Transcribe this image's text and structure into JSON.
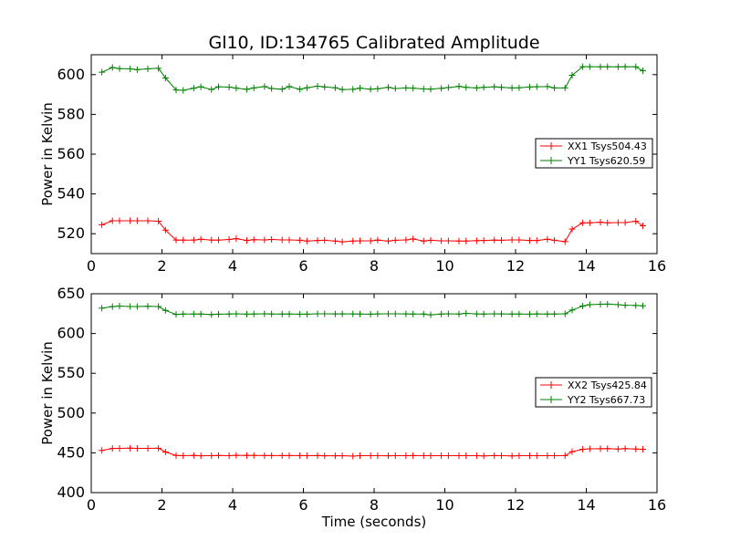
{
  "chart_data": [
    {
      "type": "line",
      "title": "Gl10, ID:134765 Calibrated Amplitude",
      "xlabel": "",
      "ylabel": "Power in Kelvin",
      "xlim": [
        0,
        16
      ],
      "ylim": [
        510,
        610
      ],
      "xticks": [
        0,
        2,
        4,
        6,
        8,
        10,
        12,
        14,
        16
      ],
      "yticks": [
        520,
        540,
        560,
        580,
        600
      ],
      "legend_position": "right",
      "x": [
        0.3,
        0.6,
        0.8,
        1.1,
        1.3,
        1.6,
        1.9,
        2.1,
        2.4,
        2.6,
        2.9,
        3.1,
        3.4,
        3.6,
        3.9,
        4.1,
        4.4,
        4.6,
        4.9,
        5.1,
        5.4,
        5.6,
        5.9,
        6.1,
        6.4,
        6.6,
        6.9,
        7.1,
        7.4,
        7.6,
        7.9,
        8.1,
        8.4,
        8.6,
        8.9,
        9.1,
        9.4,
        9.6,
        9.9,
        10.1,
        10.4,
        10.6,
        10.9,
        11.1,
        11.4,
        11.6,
        11.9,
        12.1,
        12.4,
        12.6,
        12.9,
        13.1,
        13.4,
        13.6,
        13.9,
        14.1,
        14.4,
        14.6,
        14.9,
        15.1,
        15.4,
        15.6
      ],
      "series": [
        {
          "name": "XX1 Tsys504.43",
          "color": "#ff0000",
          "values": [
            524.5,
            526.5,
            526.5,
            526.5,
            526.5,
            526.5,
            526.3,
            521.8,
            516.8,
            516.8,
            516.8,
            517.2,
            516.8,
            516.8,
            517.1,
            517.5,
            516.6,
            517.0,
            516.9,
            517.1,
            516.9,
            516.9,
            516.7,
            516.3,
            516.6,
            516.7,
            516.3,
            515.9,
            516.3,
            516.4,
            516.4,
            516.8,
            516.3,
            516.7,
            516.9,
            517.4,
            516.3,
            516.7,
            516.4,
            516.4,
            516.3,
            516.3,
            516.5,
            516.6,
            516.8,
            516.7,
            516.9,
            516.9,
            516.6,
            516.6,
            517.2,
            516.7,
            516.0,
            522.3,
            525.5,
            525.5,
            525.8,
            525.5,
            525.6,
            525.6,
            526.3,
            524.0
          ]
        },
        {
          "name": "YY1 Tsys620.59",
          "color": "#008000",
          "values": [
            601.2,
            603.6,
            603.0,
            602.9,
            602.5,
            602.9,
            603.2,
            598.3,
            592.3,
            592.1,
            593.2,
            593.9,
            592.5,
            593.9,
            593.7,
            593.2,
            592.6,
            593.3,
            594.0,
            593.0,
            592.7,
            594.0,
            592.6,
            593.4,
            594.2,
            593.8,
            593.4,
            592.5,
            592.6,
            593.2,
            592.7,
            592.9,
            593.6,
            593.0,
            593.3,
            593.2,
            592.8,
            592.7,
            593.1,
            593.5,
            594.1,
            593.6,
            593.3,
            593.6,
            593.9,
            593.6,
            593.3,
            593.4,
            593.8,
            593.9,
            594.0,
            593.3,
            593.3,
            599.7,
            604.0,
            604.0,
            603.9,
            604.0,
            603.9,
            604.0,
            603.9,
            601.9
          ]
        }
      ]
    },
    {
      "type": "line",
      "title": "",
      "xlabel": "Time (seconds)",
      "ylabel": "Power in Kelvin",
      "xlim": [
        0,
        16
      ],
      "ylim": [
        400,
        650
      ],
      "xticks": [
        0,
        2,
        4,
        6,
        8,
        10,
        12,
        14,
        16
      ],
      "yticks": [
        400,
        450,
        500,
        550,
        600,
        650
      ],
      "legend_position": "right",
      "x": [
        0.3,
        0.6,
        0.8,
        1.1,
        1.3,
        1.6,
        1.9,
        2.1,
        2.4,
        2.6,
        2.9,
        3.1,
        3.4,
        3.6,
        3.9,
        4.1,
        4.4,
        4.6,
        4.9,
        5.1,
        5.4,
        5.6,
        5.9,
        6.1,
        6.4,
        6.6,
        6.9,
        7.1,
        7.4,
        7.6,
        7.9,
        8.1,
        8.4,
        8.6,
        8.9,
        9.1,
        9.4,
        9.6,
        9.9,
        10.1,
        10.4,
        10.6,
        10.9,
        11.1,
        11.4,
        11.6,
        11.9,
        12.1,
        12.4,
        12.6,
        12.9,
        13.1,
        13.4,
        13.6,
        13.9,
        14.1,
        14.4,
        14.6,
        14.9,
        15.1,
        15.4,
        15.6
      ],
      "series": [
        {
          "name": "XX2 Tsys425.84",
          "color": "#ff0000",
          "values": [
            453.0,
            455.5,
            455.6,
            455.9,
            455.6,
            455.6,
            455.8,
            451.0,
            446.8,
            446.4,
            446.8,
            446.3,
            446.5,
            446.7,
            446.5,
            446.9,
            446.8,
            446.7,
            446.6,
            446.6,
            446.6,
            446.6,
            446.6,
            446.5,
            446.6,
            446.3,
            446.3,
            446.4,
            445.9,
            446.4,
            446.5,
            446.5,
            446.3,
            446.4,
            446.5,
            446.6,
            446.4,
            446.5,
            446.5,
            446.5,
            446.5,
            446.4,
            446.4,
            446.2,
            446.6,
            446.4,
            446.2,
            446.4,
            446.4,
            446.4,
            446.4,
            446.4,
            446.6,
            451.5,
            454.5,
            455.1,
            455.2,
            455.4,
            454.8,
            455.4,
            454.8,
            454.5
          ]
        },
        {
          "name": "YY2 Tsys667.73",
          "color": "#008000",
          "values": [
            632.0,
            633.8,
            634.5,
            634.0,
            634.0,
            634.3,
            634.0,
            629.0,
            624.0,
            624.5,
            624.5,
            624.5,
            623.8,
            624.3,
            624.5,
            624.8,
            624.3,
            624.5,
            624.8,
            624.5,
            624.5,
            624.5,
            624.3,
            624.3,
            624.8,
            624.8,
            624.6,
            624.6,
            624.6,
            624.5,
            624.3,
            624.6,
            624.8,
            624.8,
            624.6,
            624.5,
            624.5,
            623.5,
            624.5,
            624.8,
            624.5,
            625.3,
            624.6,
            624.5,
            624.8,
            624.6,
            624.5,
            624.5,
            624.3,
            624.6,
            624.5,
            624.5,
            624.8,
            629.5,
            634.5,
            636.2,
            636.8,
            637.0,
            636.2,
            635.5,
            635.3,
            634.8
          ]
        }
      ]
    }
  ]
}
